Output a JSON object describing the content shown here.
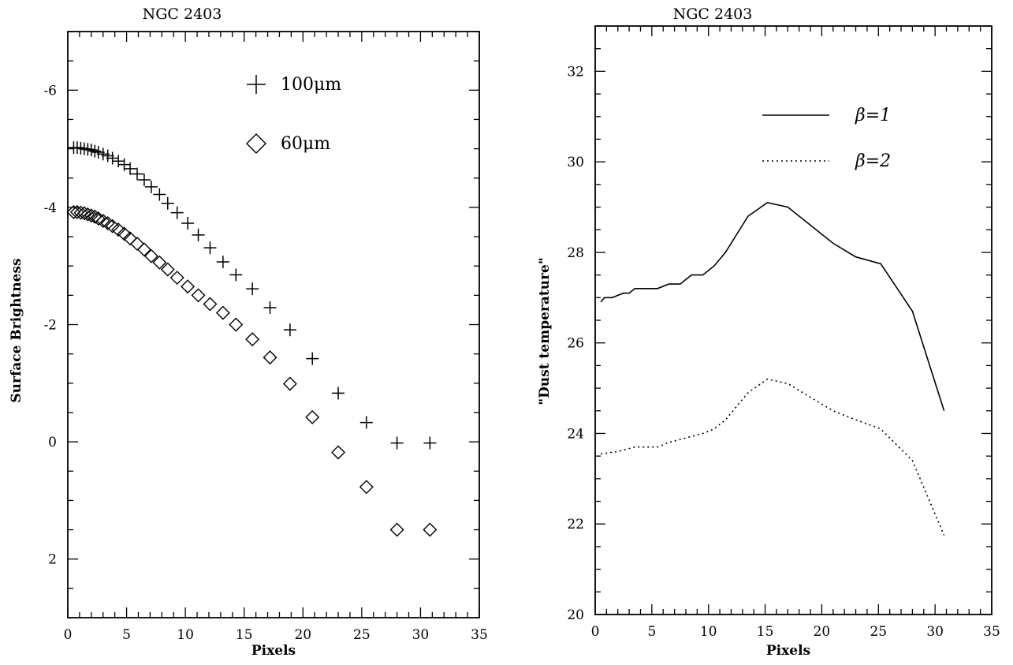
{
  "chart_data": [
    {
      "type": "scatter",
      "title": "NGC 2403",
      "xlabel": "Pixels",
      "ylabel": "Surface Brightness",
      "xlim": [
        0,
        35
      ],
      "ylim": [
        3,
        -7
      ],
      "y_inverted": true,
      "grid": false,
      "legend_position": "top-right",
      "x_ticks": [
        "0",
        "5",
        "10",
        "15",
        "20",
        "25",
        "30",
        "35"
      ],
      "y_ticks": [
        "-6",
        "-4",
        "-2",
        "0",
        "2"
      ],
      "series": [
        {
          "name": "100μm",
          "marker": "plus",
          "x": [
            0.5,
            0.8,
            1.1,
            1.4,
            1.7,
            2.0,
            2.3,
            2.6,
            3.0,
            3.4,
            3.8,
            4.3,
            4.8,
            5.3,
            5.9,
            6.5,
            7.1,
            7.8,
            8.5,
            9.3,
            10.2,
            11.1,
            12.1,
            13.2,
            14.3,
            15.7,
            17.2,
            18.9,
            20.8,
            23.0,
            25.4,
            28.0,
            30.8
          ],
          "y": [
            -5.02,
            -5.02,
            -5.01,
            -5.0,
            -4.99,
            -4.98,
            -4.96,
            -4.94,
            -4.91,
            -4.88,
            -4.84,
            -4.79,
            -4.73,
            -4.66,
            -4.57,
            -4.47,
            -4.35,
            -4.22,
            -4.07,
            -3.91,
            -3.73,
            -3.53,
            -3.31,
            -3.07,
            -2.85,
            -2.61,
            -2.29,
            -1.91,
            -1.42,
            -0.83,
            -0.33,
            0.02,
            0.02
          ]
        },
        {
          "name": "60μm",
          "marker": "diamond",
          "x": [
            0.5,
            0.8,
            1.1,
            1.4,
            1.7,
            2.0,
            2.3,
            2.6,
            3.0,
            3.4,
            3.8,
            4.3,
            4.8,
            5.3,
            5.9,
            6.5,
            7.1,
            7.8,
            8.5,
            9.3,
            10.2,
            11.1,
            12.1,
            13.2,
            14.3,
            15.7,
            17.2,
            18.9,
            20.8,
            23.0,
            25.4,
            28.0,
            30.8
          ],
          "y": [
            -3.92,
            -3.92,
            -3.91,
            -3.9,
            -3.88,
            -3.86,
            -3.84,
            -3.81,
            -3.77,
            -3.73,
            -3.68,
            -3.62,
            -3.55,
            -3.47,
            -3.38,
            -3.28,
            -3.17,
            -3.06,
            -2.94,
            -2.8,
            -2.65,
            -2.5,
            -2.35,
            -2.2,
            -2.0,
            -1.75,
            -1.44,
            -0.99,
            -0.42,
            0.18,
            0.77,
            1.5,
            1.5
          ]
        }
      ]
    },
    {
      "type": "line",
      "title": "NGC 2403",
      "xlabel": "Pixels",
      "ylabel": "\"Dust temperature\"",
      "xlim": [
        0,
        35
      ],
      "ylim": [
        20,
        33
      ],
      "grid": false,
      "legend_position": "top-right",
      "x_ticks": [
        "0",
        "5",
        "10",
        "15",
        "20",
        "25",
        "30",
        "35"
      ],
      "y_ticks": [
        "20",
        "22",
        "24",
        "26",
        "28",
        "30",
        "32"
      ],
      "series": [
        {
          "name": "β=1",
          "style": "solid",
          "x": [
            0.5,
            0.8,
            1.5,
            2.0,
            2.5,
            3.0,
            3.5,
            4.5,
            5.5,
            6.5,
            7.5,
            8.5,
            9.5,
            10.5,
            11.5,
            12.5,
            13.5,
            15.2,
            17.0,
            19.0,
            21.0,
            23.0,
            25.2,
            28.0,
            30.8
          ],
          "y": [
            26.9,
            27.0,
            27.0,
            27.05,
            27.1,
            27.1,
            27.2,
            27.2,
            27.2,
            27.3,
            27.3,
            27.5,
            27.5,
            27.7,
            28.0,
            28.4,
            28.8,
            29.1,
            29.0,
            28.6,
            28.2,
            27.9,
            27.75,
            26.7,
            24.5
          ]
        },
        {
          "name": "β=2",
          "style": "dotted",
          "x": [
            0.5,
            2.0,
            3.5,
            5.5,
            6.5,
            8.0,
            9.5,
            10.5,
            11.5,
            12.5,
            13.5,
            15.2,
            17.0,
            19.0,
            21.0,
            23.0,
            25.2,
            28.0,
            30.8
          ],
          "y": [
            23.55,
            23.6,
            23.7,
            23.7,
            23.8,
            23.9,
            24.0,
            24.1,
            24.3,
            24.6,
            24.9,
            25.2,
            25.1,
            24.8,
            24.5,
            24.3,
            24.1,
            23.4,
            21.75
          ]
        }
      ]
    }
  ]
}
